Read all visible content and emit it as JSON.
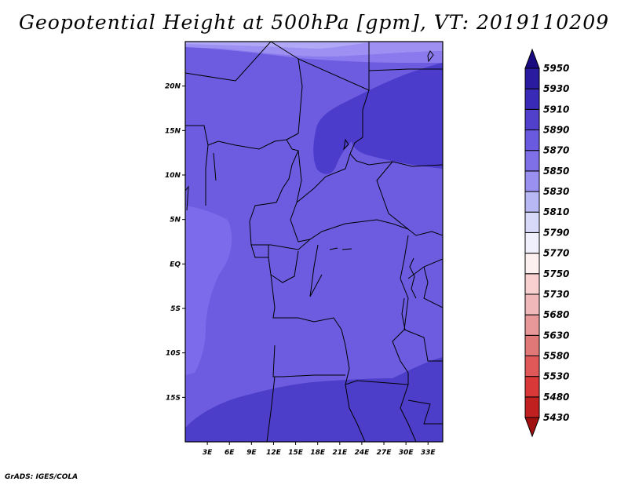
{
  "title": "Geopotential Height at 500hPa [gpm], VT: 2019110209",
  "footer": "GrADS: IGES/COLA",
  "map": {
    "lon_labels": [
      "3E",
      "6E",
      "9E",
      "12E",
      "15E",
      "18E",
      "21E",
      "24E",
      "27E",
      "30E",
      "33E"
    ],
    "lat_labels": [
      "20N",
      "15N",
      "10N",
      "5N",
      "EQ",
      "5S",
      "10S",
      "15S"
    ],
    "lon_values": [
      3,
      6,
      9,
      12,
      15,
      18,
      21,
      24,
      27,
      30,
      33
    ],
    "lat_values": [
      20,
      15,
      10,
      5,
      0,
      -5,
      -10,
      -15
    ],
    "lon_range": [
      0,
      35
    ],
    "lat_range": [
      -20,
      25
    ]
  },
  "colorbar": {
    "labels": [
      "5430",
      "5480",
      "5530",
      "5580",
      "5630",
      "5680",
      "5730",
      "5750",
      "5770",
      "5790",
      "5810",
      "5830",
      "5850",
      "5870",
      "5890",
      "5910",
      "5930",
      "5950"
    ],
    "colors": [
      "#a01010",
      "#c02020",
      "#d83838",
      "#e05858",
      "#e07878",
      "#e89898",
      "#f0b8b8",
      "#f8d0d0",
      "#fdf0f0",
      "#f0f0fc",
      "#d8d8f8",
      "#b8b8f4",
      "#9a90f0",
      "#8070e8",
      "#6a5ae0",
      "#5040cc",
      "#3a2ab8",
      "#2a1aa0",
      "#1a0a80"
    ],
    "unit": "gpm"
  }
}
